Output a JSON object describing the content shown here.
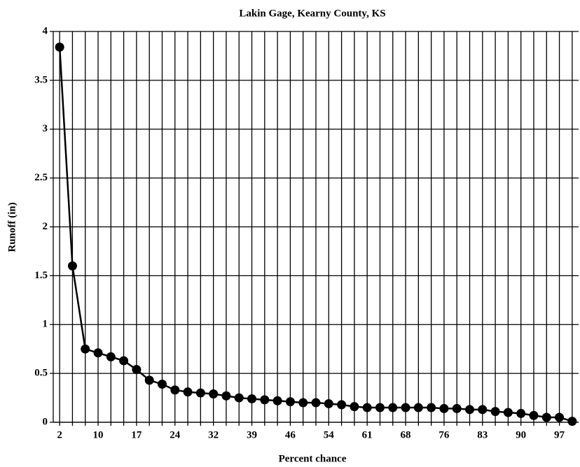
{
  "chart_data": {
    "type": "line",
    "title": "Lakin Gage, Kearny County, KS",
    "x_label": "Percent chance",
    "y_label": "Runoff (in)",
    "categories": [
      "2",
      null,
      null,
      "10",
      null,
      null,
      "17",
      null,
      null,
      "24",
      null,
      null,
      "32",
      null,
      null,
      "39",
      null,
      null,
      "46",
      null,
      null,
      "54",
      null,
      null,
      "61",
      null,
      null,
      "68",
      null,
      null,
      "76",
      null,
      null,
      "83",
      null,
      null,
      "90",
      null,
      null,
      "97",
      null
    ],
    "series": [
      {
        "name": "Runoff",
        "color": "#000000",
        "values": [
          3.84,
          1.6,
          0.75,
          0.71,
          0.67,
          0.63,
          0.54,
          0.43,
          0.39,
          0.33,
          0.31,
          0.3,
          0.29,
          0.27,
          0.25,
          0.24,
          0.23,
          0.22,
          0.21,
          0.2,
          0.2,
          0.19,
          0.18,
          0.16,
          0.15,
          0.15,
          0.15,
          0.15,
          0.15,
          0.15,
          0.14,
          0.14,
          0.13,
          0.13,
          0.11,
          0.1,
          0.09,
          0.07,
          0.05,
          0.05,
          0.01
        ]
      }
    ],
    "ylim": [
      0,
      4
    ],
    "yticks": [
      0,
      0.5,
      1,
      1.5,
      2,
      2.5,
      3,
      3.5,
      4
    ],
    "grid": true
  }
}
